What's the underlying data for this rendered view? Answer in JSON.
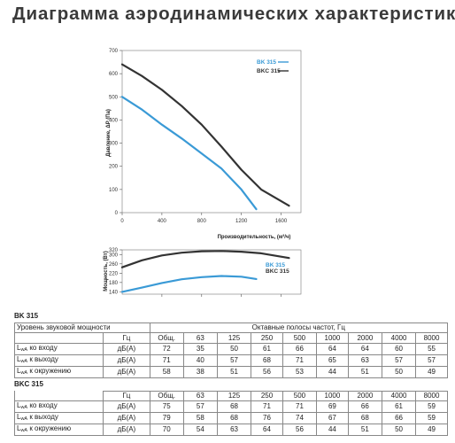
{
  "page": {
    "title": "Диаграмма аэродинамических характеристик"
  },
  "chart_data": [
    {
      "type": "line",
      "ylabel": "Давление, ΔP (Па)",
      "xlabel": "Производительность, (м³/ч)",
      "xlim": [
        0,
        1800
      ],
      "ylim": [
        0,
        700
      ],
      "xticks": [
        0,
        400,
        800,
        1200,
        1600
      ],
      "xtick_labels": [
        "0",
        "400",
        "800",
        "1200",
        "1600"
      ],
      "yticks": [
        0,
        100,
        200,
        300,
        400,
        500,
        600,
        700
      ],
      "ytick_labels": [
        "0",
        "100",
        "200",
        "300",
        "400",
        "500",
        "600",
        "700"
      ],
      "grid": false,
      "legend": "top-right",
      "series": [
        {
          "name": "BK 315",
          "color": "#3a9ad6",
          "x": [
            0,
            200,
            400,
            600,
            800,
            1000,
            1200,
            1350
          ],
          "y": [
            500,
            445,
            380,
            320,
            255,
            190,
            100,
            15
          ]
        },
        {
          "name": "BKC 315",
          "color": "#333333",
          "x": [
            0,
            200,
            400,
            600,
            800,
            1000,
            1200,
            1400,
            1680
          ],
          "y": [
            640,
            590,
            530,
            460,
            380,
            285,
            185,
            100,
            30
          ]
        }
      ]
    },
    {
      "type": "line",
      "ylabel": "Мощность, (Вт)",
      "xlim": [
        0,
        1800
      ],
      "ylim": [
        130,
        320
      ],
      "yticks": [
        140,
        180,
        220,
        260,
        300,
        320
      ],
      "ytick_labels": [
        "140",
        "180",
        "220",
        "260",
        "300",
        "320"
      ],
      "xticks": [
        400,
        800,
        1200,
        1600
      ],
      "grid": false,
      "legend": "right",
      "series": [
        {
          "name": "BK 315",
          "color": "#3a9ad6",
          "x": [
            0,
            200,
            400,
            600,
            800,
            1000,
            1200,
            1350
          ],
          "y": [
            140,
            158,
            178,
            194,
            203,
            208,
            205,
            195
          ]
        },
        {
          "name": "BKC 315",
          "color": "#333333",
          "x": [
            0,
            200,
            400,
            600,
            800,
            1000,
            1200,
            1400,
            1680
          ],
          "y": [
            245,
            275,
            296,
            308,
            314,
            315,
            312,
            305,
            285
          ]
        }
      ]
    }
  ],
  "tables": {
    "bk315": {
      "title": "BK 315",
      "header_left": "Уровень звуковой мощности",
      "header_right": "Октавные полосы частот, Гц",
      "unit_hz": "Гц",
      "columns": [
        "Общ.",
        "63",
        "125",
        "250",
        "500",
        "1000",
        "2000",
        "4000",
        "8000"
      ],
      "rows": [
        {
          "label": "ко входу",
          "unit": "дБ(А)",
          "values": [
            "72",
            "35",
            "50",
            "61",
            "66",
            "64",
            "64",
            "60",
            "55"
          ]
        },
        {
          "label": "к выходу",
          "unit": "дБ(А)",
          "values": [
            "71",
            "40",
            "57",
            "68",
            "71",
            "65",
            "63",
            "57",
            "57"
          ]
        },
        {
          "label": "к окружению",
          "unit": "дБ(А)",
          "values": [
            "58",
            "38",
            "51",
            "56",
            "53",
            "44",
            "51",
            "50",
            "49"
          ]
        }
      ]
    },
    "bkc315": {
      "title": "BKC 315",
      "unit_hz": "Гц",
      "columns": [
        "Общ.",
        "63",
        "125",
        "250",
        "500",
        "1000",
        "2000",
        "4000",
        "8000"
      ],
      "rows": [
        {
          "label": "ко входу",
          "unit": "дБ(А)",
          "values": [
            "75",
            "57",
            "68",
            "71",
            "71",
            "69",
            "66",
            "61",
            "59"
          ]
        },
        {
          "label": "к выходу",
          "unit": "дБ(А)",
          "values": [
            "79",
            "58",
            "68",
            "76",
            "74",
            "67",
            "68",
            "66",
            "59"
          ]
        },
        {
          "label": "к окружению",
          "unit": "дБ(А)",
          "values": [
            "70",
            "54",
            "63",
            "64",
            "56",
            "44",
            "51",
            "50",
            "49"
          ]
        }
      ]
    },
    "row_prefix": "L",
    "row_prefix_sub": "wA"
  }
}
